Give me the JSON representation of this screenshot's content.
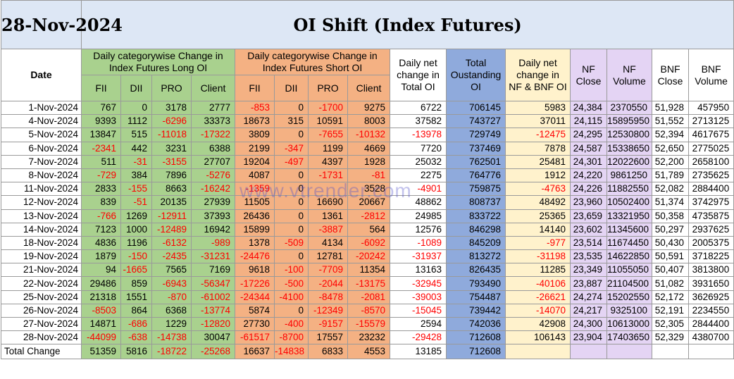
{
  "header": {
    "date": "28-Nov-2024",
    "title": "OI Shift (Index Futures)"
  },
  "groups": {
    "date": "Date",
    "long": "Daily categorywise Change in Index Futures Long OI",
    "short": "Daily categorywise Change in Index Futures Short OI",
    "net": "Daily net change in Total OI",
    "total": "Total Oustanding OI",
    "nfbnf": "Daily net change in NF & BNF OI",
    "nfclose": "NF Close",
    "nfvol": "NF Volume",
    "bnfclose": "BNF Close",
    "bnfvol": "BNF Volume"
  },
  "subcols": [
    "FII",
    "DII",
    "PRO",
    "Client",
    "FII",
    "DII",
    "PRO",
    "Client"
  ],
  "rows": [
    [
      "1-Nov-2024",
      "767",
      "0",
      "3178",
      "2777",
      "-853",
      "0",
      "-1700",
      "9275",
      "6722",
      "706145",
      "5983",
      "24,384",
      "2370550",
      "51,928",
      "457950"
    ],
    [
      "4-Nov-2024",
      "9393",
      "1112",
      "-6296",
      "33373",
      "18673",
      "315",
      "10591",
      "8003",
      "37582",
      "743727",
      "37011",
      "24,115",
      "15895950",
      "51,552",
      "2713125"
    ],
    [
      "5-Nov-2024",
      "13847",
      "515",
      "-11018",
      "-17322",
      "3809",
      "0",
      "-7655",
      "-10132",
      "-13978",
      "729749",
      "-12475",
      "24,295",
      "12530800",
      "52,394",
      "4617675"
    ],
    [
      "6-Nov-2024",
      "-2341",
      "442",
      "3231",
      "6388",
      "2199",
      "-347",
      "1199",
      "4669",
      "7720",
      "737469",
      "7878",
      "24,587",
      "15338650",
      "52,650",
      "2775025"
    ],
    [
      "7-Nov-2024",
      "511",
      "-31",
      "-3155",
      "27707",
      "19204",
      "-497",
      "4397",
      "1928",
      "25032",
      "762501",
      "25481",
      "24,301",
      "12022600",
      "52,200",
      "2658100"
    ],
    [
      "8-Nov-2024",
      "-729",
      "384",
      "7896",
      "-5276",
      "4087",
      "0",
      "-1731",
      "-81",
      "2275",
      "764776",
      "1912",
      "24,220",
      "9861250",
      "51,789",
      "2735625"
    ],
    [
      "11-Nov-2024",
      "2833",
      "-155",
      "8663",
      "-16242",
      "-1359",
      "0",
      "",
      "3528",
      "-4901",
      "759875",
      "-4763",
      "24,226",
      "11882550",
      "52,082",
      "2884400"
    ],
    [
      "12-Nov-2024",
      "839",
      "-51",
      "20135",
      "27939",
      "11505",
      "0",
      "16690",
      "20667",
      "48862",
      "808737",
      "48492",
      "23,960",
      "10502400",
      "51,374",
      "3742975"
    ],
    [
      "13-Nov-2024",
      "-766",
      "1269",
      "-12911",
      "37393",
      "26436",
      "0",
      "1361",
      "-2812",
      "24985",
      "833722",
      "25365",
      "23,659",
      "13321950",
      "50,358",
      "4735875"
    ],
    [
      "14-Nov-2024",
      "7123",
      "1000",
      "-12489",
      "16942",
      "15899",
      "0",
      "-3887",
      "564",
      "12576",
      "846298",
      "14140",
      "23,602",
      "11345600",
      "50,297",
      "2937625"
    ],
    [
      "18-Nov-2024",
      "4836",
      "1196",
      "-6132",
      "-989",
      "1378",
      "-509",
      "4134",
      "-6092",
      "-1089",
      "845209",
      "-977",
      "23,514",
      "11674450",
      "50,430",
      "2005375"
    ],
    [
      "19-Nov-2024",
      "1879",
      "-150",
      "-2435",
      "-31231",
      "-24476",
      "0",
      "12781",
      "-20242",
      "-31937",
      "813272",
      "-31198",
      "23,535",
      "14622850",
      "50,591",
      "3718225"
    ],
    [
      "21-Nov-2024",
      "94",
      "-1665",
      "7565",
      "7169",
      "9618",
      "-100",
      "-7709",
      "11354",
      "13163",
      "826435",
      "11285",
      "23,349",
      "11055050",
      "50,407",
      "3813800"
    ],
    [
      "22-Nov-2024",
      "29486",
      "859",
      "-6943",
      "-56347",
      "-17226",
      "-500",
      "-2044",
      "-13175",
      "-32945",
      "793490",
      "-40106",
      "23,887",
      "21104500",
      "51,082",
      "3931650"
    ],
    [
      "25-Nov-2024",
      "21318",
      "1551",
      "-870",
      "-61002",
      "-24344",
      "-4100",
      "-8478",
      "-2081",
      "-39003",
      "754487",
      "-26621",
      "24,274",
      "15202550",
      "52,172",
      "3626925"
    ],
    [
      "26-Nov-2024",
      "-8503",
      "864",
      "6368",
      "-13774",
      "5874",
      "0",
      "-12349",
      "-8570",
      "-15045",
      "739442",
      "-14070",
      "24,217",
      "9325100",
      "52,191",
      "2234550"
    ],
    [
      "27-Nov-2024",
      "14871",
      "-686",
      "1229",
      "-12820",
      "27730",
      "-400",
      "-9157",
      "-15579",
      "2594",
      "742036",
      "42908",
      "24,300",
      "10613000",
      "52,305",
      "2844400"
    ],
    [
      "28-Nov-2024",
      "-44099",
      "-638",
      "-14738",
      "30047",
      "-61517",
      "-8700",
      "17557",
      "23232",
      "-29428",
      "712608",
      "106143",
      "23,904",
      "17403650",
      "52,329",
      "4380700"
    ]
  ],
  "total": [
    "Total Change",
    "51359",
    "5816",
    "-18722",
    "-25268",
    "16637",
    "-14838",
    "6833",
    "4553",
    "13185",
    "712608",
    "",
    "",
    "",
    "",
    ""
  ],
  "watermark": "www.vtrender.com",
  "colors": {
    "long": "#a9d18e",
    "short": "#f4b183",
    "total_oi": "#8faadc",
    "nf_bnf": "#fff2cc",
    "nf": "#e4d4f4",
    "negative": "#ff0000"
  }
}
